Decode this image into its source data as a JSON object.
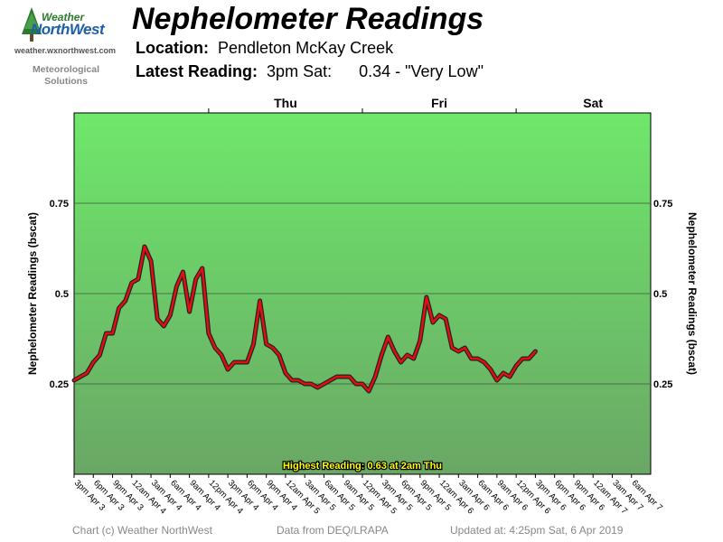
{
  "logo": {
    "line1": "Weather",
    "line2": "NorthWest",
    "url": "weather.wxnorthwest.com",
    "tagline1": "Meteorological",
    "tagline2": "Solutions"
  },
  "header": {
    "title": "Nephelometer Readings",
    "location_label": "Location:",
    "location_value": "Pendleton McKay Creek",
    "latest_label": "Latest Reading:",
    "latest_time": "3pm Sat:",
    "latest_value": "0.34 - \"Very Low\""
  },
  "footer": {
    "copyright": "Chart (c) Weather NorthWest",
    "source": "Data from DEQ/LRAPA",
    "updated": "Updated at: 4:25pm Sat, 6 Apr 2019"
  },
  "colors": {
    "band_top": "#6ee86a",
    "band_bottom": "#6aa766",
    "line": "#e01010",
    "line_shadow": "#202020",
    "highlight_text": "#ffff00"
  },
  "chart_data": {
    "type": "line",
    "title": "Nephelometer Readings",
    "ylabel_left": "Nephelometer Readings (bscat)",
    "ylabel_right": "Nephelometer Readings (bscat)",
    "ylim": [
      0,
      1.0
    ],
    "yticks": [
      0.25,
      0.5,
      0.75
    ],
    "ytick_labels": [
      "0.25",
      "0.5",
      "0.75"
    ],
    "grid": true,
    "day_labels": [
      {
        "label": "Thu",
        "hour": 33
      },
      {
        "label": "Fri",
        "hour": 57
      },
      {
        "label": "Sat",
        "hour": 81
      }
    ],
    "xlim_hours": [
      0,
      90
    ],
    "xtick_labels": [
      "3pm Apr 3",
      "6pm Apr 3",
      "9pm Apr 3",
      "12am Apr 4",
      "3am Apr 4",
      "6am Apr 4",
      "9am Apr 4",
      "12pm Apr 4",
      "3pm Apr 4",
      "6pm Apr 4",
      "9pm Apr 4",
      "12am Apr 5",
      "3am Apr 5",
      "6am Apr 5",
      "9am Apr 5",
      "12pm Apr 5",
      "3pm Apr 5",
      "6pm Apr 5",
      "9pm Apr 5",
      "12am Apr 6",
      "3am Apr 6",
      "6am Apr 6",
      "9am Apr 6",
      "12pm Apr 6",
      "3pm Apr 6",
      "6pm Apr 6",
      "9pm Apr 6",
      "12am Apr 7",
      "3am Apr 7",
      "6am Apr 7"
    ],
    "x_start": "3pm Apr 3",
    "series": [
      {
        "values": [
          0.26,
          0.27,
          0.28,
          0.31,
          0.33,
          0.39,
          0.39,
          0.46,
          0.48,
          0.53,
          0.54,
          0.63,
          0.59,
          0.43,
          0.41,
          0.44,
          0.52,
          0.56,
          0.45,
          0.54,
          0.57,
          0.39,
          0.35,
          0.33,
          0.29,
          0.31,
          0.31,
          0.31,
          0.36,
          0.48,
          0.36,
          0.35,
          0.33,
          0.28,
          0.26,
          0.26,
          0.25,
          0.25,
          0.24,
          0.25,
          0.26,
          0.27,
          0.27,
          0.27,
          0.25,
          0.25,
          0.23,
          0.27,
          0.33,
          0.38,
          0.34,
          0.31,
          0.33,
          0.32,
          0.37,
          0.49,
          0.42,
          0.44,
          0.43,
          0.35,
          0.34,
          0.35,
          0.32,
          0.32,
          0.31,
          0.29,
          0.26,
          0.28,
          0.27,
          0.3,
          0.32,
          0.32,
          0.34
        ]
      }
    ],
    "annotation": "Highest Reading: 0.63 at 2am Thu"
  }
}
